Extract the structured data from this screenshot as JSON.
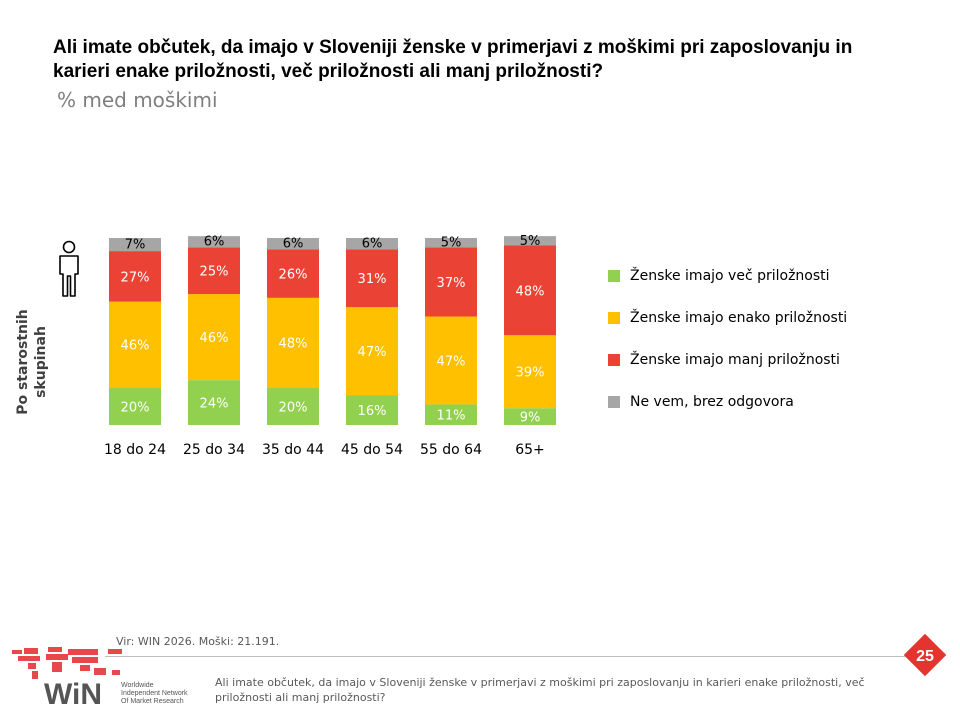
{
  "title": "Ali imate občutek, da imajo v Sloveniji ženske v primerjavi z moškimi pri zaposlovanju in karieri enake priložnosti, več priložnosti ali manj priložnosti?",
  "subtitle": "% med moškimi",
  "side_title": "Po starostnih skupinah",
  "source": "Vir: WIN 2026.  Moški: 21.191.",
  "footnote": "Ali imate občutek, da imajo v Sloveniji ženske v primerjavi z moškimi pri zaposlovanju in karieri enake priložnosti, več priložnosti ali manj priložnosti?",
  "page_number": "25",
  "logo": {
    "wordmark": "WiN",
    "tagline": [
      "Worldwide",
      "Independent Network",
      "Of Market Research"
    ]
  },
  "colors": {
    "more": "#92d050",
    "equal": "#ffc000",
    "less": "#ea4335",
    "dont_know": "#a6a6a6",
    "badge": "#e3342f"
  },
  "chart_data": {
    "type": "bar",
    "stacked": true,
    "categories": [
      "18 do 24",
      "25 do 34",
      "35 do 44",
      "45 do 54",
      "55 do 64",
      "65+"
    ],
    "series": [
      {
        "name": "Ženske imajo več priložnosti",
        "key": "more",
        "values": [
          20,
          24,
          20,
          16,
          11,
          9
        ]
      },
      {
        "name": "Ženske imajo enako priložnosti",
        "key": "equal",
        "values": [
          46,
          46,
          48,
          47,
          47,
          39
        ]
      },
      {
        "name": "Ženske imajo manj priložnosti",
        "key": "less",
        "values": [
          27,
          25,
          26,
          31,
          37,
          48
        ]
      },
      {
        "name": "Ne vem, brez odgovora",
        "key": "dont_know",
        "values": [
          7,
          6,
          6,
          6,
          5,
          5
        ]
      }
    ],
    "ylim": [
      0,
      100
    ],
    "legend_position": "right",
    "grid": false
  }
}
